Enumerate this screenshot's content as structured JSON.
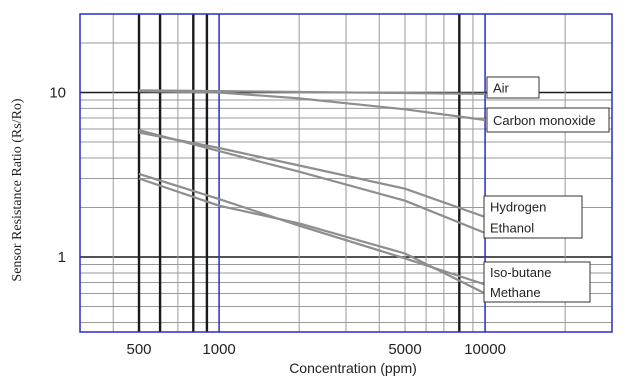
{
  "chart_data": {
    "type": "line",
    "xlabel": "Concentration (ppm)",
    "ylabel": "Sensor Resistance Ratio (Rs/Ro)",
    "x_scale": "log",
    "y_scale": "log",
    "xlim": [
      300,
      30000
    ],
    "ylim": [
      0.35,
      30
    ],
    "x_tick_labels": [
      {
        "value": 500,
        "label": "500"
      },
      {
        "value": 1000,
        "label": "1000"
      },
      {
        "value": 5000,
        "label": "5000"
      },
      {
        "value": 10000,
        "label": "10000"
      }
    ],
    "y_tick_labels": [
      {
        "value": 10,
        "label": "10"
      },
      {
        "value": 1,
        "label": "1"
      }
    ],
    "grid": true,
    "series": [
      {
        "name": "Air",
        "x": [
          500,
          1000,
          10000
        ],
        "y": [
          10.3,
          10.2,
          9.8
        ]
      },
      {
        "name": "Carbon monoxide",
        "x": [
          500,
          1000,
          2000,
          5000,
          10000
        ],
        "y": [
          10.2,
          10.0,
          9.2,
          7.9,
          6.8
        ]
      },
      {
        "name": "Hydrogen",
        "x": [
          500,
          1000,
          2000,
          5000,
          10000
        ],
        "y": [
          5.7,
          4.6,
          3.6,
          2.6,
          1.75
        ]
      },
      {
        "name": "Ethanol",
        "x": [
          500,
          1000,
          2000,
          5000,
          10000
        ],
        "y": [
          5.9,
          4.4,
          3.3,
          2.2,
          1.4
        ]
      },
      {
        "name": "Iso-butane",
        "x": [
          500,
          1000,
          2000,
          5000,
          10000
        ],
        "y": [
          3.2,
          2.25,
          1.55,
          0.98,
          0.68
        ]
      },
      {
        "name": "Methane",
        "x": [
          500,
          1000,
          2000,
          5000,
          10000
        ],
        "y": [
          3.0,
          2.05,
          1.6,
          1.05,
          0.6
        ]
      }
    ],
    "legend_labels": [
      {
        "group": "air",
        "labels": [
          "Air"
        ]
      },
      {
        "group": "co",
        "labels": [
          "Carbon monoxide"
        ]
      },
      {
        "group": "h2",
        "labels": [
          "Hydrogen",
          "Ethanol"
        ]
      },
      {
        "group": "ch4",
        "labels": [
          "Iso-butane",
          "Methane"
        ]
      }
    ],
    "colors": {
      "major_grid": "#1a1a1a",
      "minor_grid": "#9a9a9a",
      "frame": "#2a2ac8",
      "curve": "#8e8e8e"
    }
  }
}
